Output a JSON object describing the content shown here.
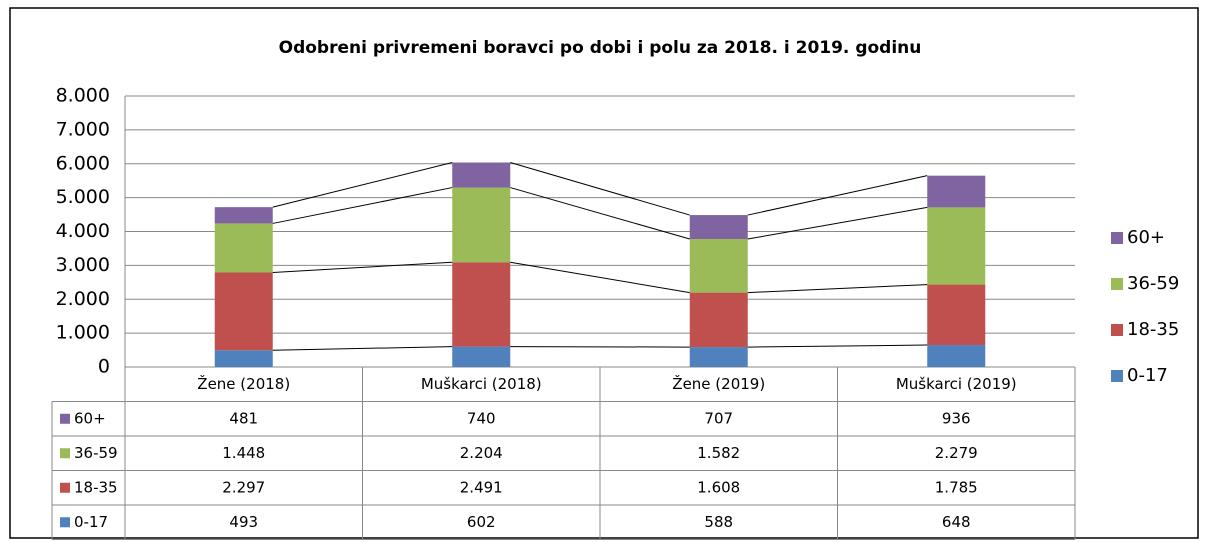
{
  "chart_data": {
    "type": "stacked_bar",
    "title": "Odobreni privremeni boravci po dobi i polu za 2018. i 2019. godinu",
    "categories": [
      "Žene (2018)",
      "Muškarci (2018)",
      "Žene (2019)",
      "Muškarci (2019)"
    ],
    "series": [
      {
        "name": "0-17",
        "color": "#4f81bd",
        "values": [
          493,
          602,
          588,
          648
        ],
        "value_labels": [
          "493",
          "602",
          "588",
          "648"
        ]
      },
      {
        "name": "18-35",
        "color": "#c0504d",
        "values": [
          2297,
          2491,
          1608,
          1785
        ],
        "value_labels": [
          "2.297",
          "2.491",
          "1.608",
          "1.785"
        ]
      },
      {
        "name": "36-59",
        "color": "#9bbb59",
        "values": [
          1448,
          2204,
          1582,
          2279
        ],
        "value_labels": [
          "1.448",
          "2.204",
          "1.582",
          "2.279"
        ]
      },
      {
        "name": "60+",
        "color": "#8064a2",
        "values": [
          481,
          740,
          707,
          936
        ],
        "value_labels": [
          "481",
          "740",
          "707",
          "936"
        ]
      }
    ],
    "ylim": [
      0,
      8000
    ],
    "yticks": [
      0,
      {
        "value": 1000,
        "label": "1.000"
      },
      {
        "value": 2000,
        "label": "2.000"
      },
      {
        "value": 3000,
        "label": "3.000"
      },
      {
        "value": 4000,
        "label": "4.000"
      },
      {
        "value": 5000,
        "label": "5.000"
      },
      {
        "value": 6000,
        "label": "6.000"
      },
      {
        "value": 7000,
        "label": "7.000"
      },
      {
        "value": 8000,
        "label": "8.000"
      }
    ],
    "grid": true,
    "legend": "right",
    "data_table": true
  }
}
